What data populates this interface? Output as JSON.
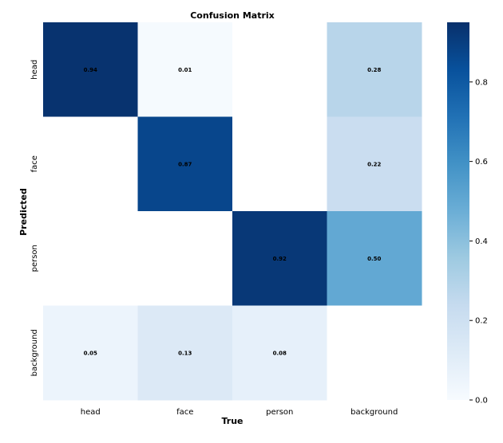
{
  "chart_data": {
    "type": "heatmap",
    "title": "Confusion Matrix",
    "xlabel": "True",
    "ylabel": "Predicted",
    "x_categories": [
      "head",
      "face",
      "person",
      "background"
    ],
    "y_categories": [
      "head",
      "face",
      "person",
      "background"
    ],
    "values": [
      [
        0.94,
        0.01,
        null,
        0.28
      ],
      [
        null,
        0.87,
        null,
        0.22
      ],
      [
        null,
        null,
        0.92,
        0.5
      ],
      [
        0.05,
        0.13,
        0.08,
        null
      ]
    ],
    "value_labels": [
      [
        "0.94",
        "0.01",
        "",
        "0.28"
      ],
      [
        "",
        "0.87",
        "",
        "0.22"
      ],
      [
        "",
        "",
        "0.92",
        "0.50"
      ],
      [
        "0.05",
        "0.13",
        "0.08",
        ""
      ]
    ],
    "colorbar": {
      "range": [
        0,
        0.95
      ],
      "ticks": [
        0.0,
        0.2,
        0.4,
        0.6,
        0.8
      ],
      "tick_labels": [
        "0.0",
        "0.2",
        "0.4",
        "0.6",
        "0.8"
      ],
      "colormap": "Blues"
    },
    "grid": false
  }
}
